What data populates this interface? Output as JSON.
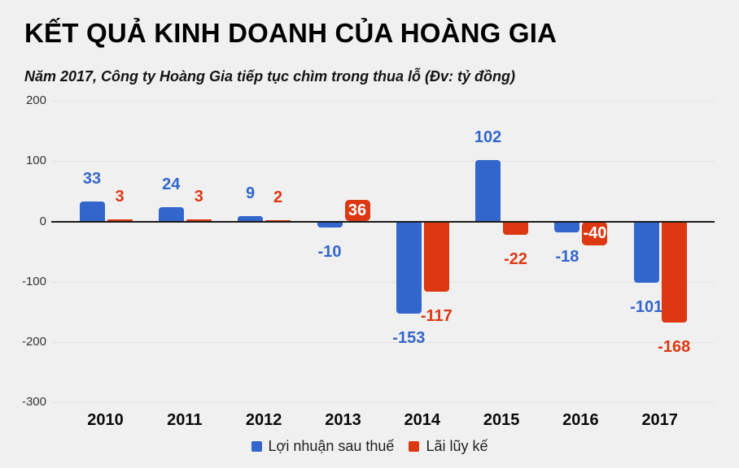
{
  "header": {
    "title": "KẾT QUẢ KINH DOANH CỦA HOÀNG GIA",
    "subtitle": "Năm 2017, Công ty Hoàng Gia tiếp tục chìm trong thua lỗ (Đv: tỷ đồng)"
  },
  "chart_data": {
    "type": "bar",
    "categories": [
      "2010",
      "2011",
      "2012",
      "2013",
      "2014",
      "2015",
      "2016",
      "2017"
    ],
    "series": [
      {
        "name": "Lợi nhuận sau thuế",
        "color": "#3366cc",
        "values": [
          33,
          24,
          9,
          -10,
          -153,
          102,
          -18,
          -101
        ]
      },
      {
        "name": "Lãi lũy kế",
        "color": "#dc3912",
        "values": [
          3,
          3,
          2,
          36,
          -117,
          -22,
          -40,
          -168
        ]
      }
    ],
    "inside_labels": [
      {
        "series": 1,
        "index": 3
      },
      {
        "series": 1,
        "index": 6
      }
    ],
    "yticks": [
      200,
      100,
      0,
      -100,
      -200,
      -300
    ],
    "ylim": [
      -300,
      200
    ],
    "xlabel": "",
    "ylabel": "",
    "unit": "tỷ đồng",
    "grid": true,
    "legend_position": "bottom"
  }
}
